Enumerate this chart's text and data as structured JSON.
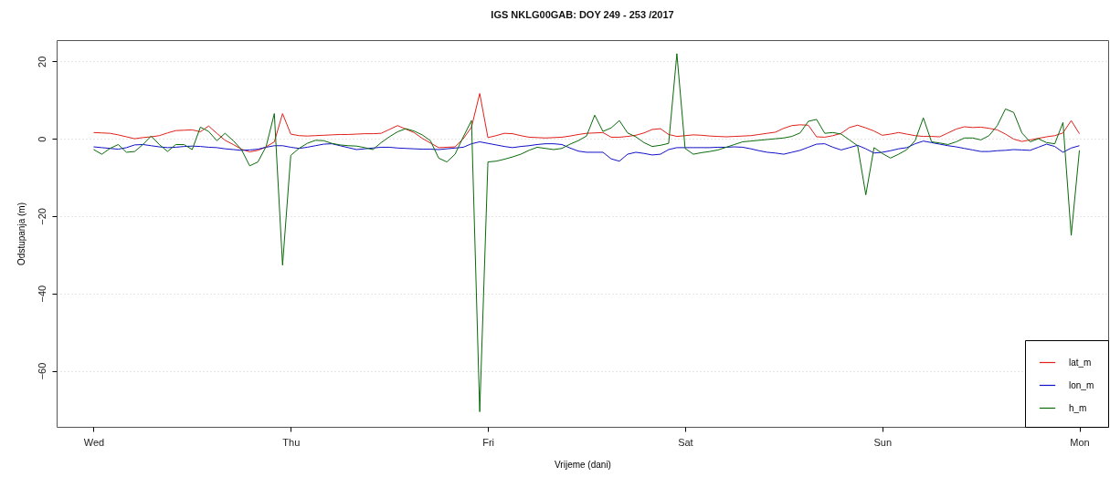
{
  "chart_data": {
    "type": "line",
    "title": "IGS NKLG00GAB: DOY 249 - 253 /2017",
    "xlabel": "Vrijeme (dani)",
    "ylabel": "Odstupanja (m)",
    "categories": [
      null,
      null,
      null,
      null,
      "Wed",
      null,
      null,
      null,
      null,
      null,
      null,
      null,
      null,
      null,
      null,
      null,
      null,
      null,
      null,
      null,
      null,
      null,
      null,
      null,
      null,
      null,
      null,
      null,
      "Thu",
      null,
      null,
      null,
      null,
      null,
      null,
      null,
      null,
      null,
      null,
      null,
      null,
      null,
      null,
      null,
      null,
      null,
      null,
      null,
      null,
      null,
      null,
      null,
      "Fri",
      null,
      null,
      null,
      null,
      null,
      null,
      null,
      null,
      null,
      null,
      null,
      null,
      null,
      null,
      null,
      null,
      null,
      null,
      null,
      null,
      null,
      null,
      null,
      "Sat",
      null,
      null,
      null,
      null,
      null,
      null,
      null,
      null,
      null,
      null,
      null,
      null,
      null,
      null,
      null,
      null,
      null,
      null,
      null,
      null,
      null,
      null,
      null,
      "Sun",
      null,
      null,
      null,
      null,
      null,
      null,
      null,
      null,
      null,
      null,
      null,
      null,
      null,
      null,
      null,
      null,
      null,
      null,
      null,
      null,
      null,
      null,
      null,
      "Mon",
      null,
      null,
      null
    ],
    "ylim": [
      -74.5,
      25.5
    ],
    "yticks": [
      -60,
      -40,
      -20,
      0,
      20
    ],
    "grid": "y",
    "legend": "bottom right",
    "series": [
      {
        "name": "lat_m",
        "color": "#e0201b",
        "values": [
          null,
          null,
          null,
          null,
          1.6,
          1.5,
          1.4,
          1,
          0.5,
          0,
          0.3,
          0.5,
          0.8,
          1.5,
          2.1,
          2.2,
          2.3,
          1.8,
          3.3,
          1.4,
          -0.4,
          -1.5,
          -2.7,
          -3.4,
          -3,
          -2.1,
          -0.8,
          6.5,
          1.2,
          0.8,
          0.7,
          0.8,
          0.9,
          1,
          1.1,
          1.1,
          1.2,
          1.3,
          1.3,
          1.4,
          2.4,
          3.4,
          2.5,
          1.6,
          0.1,
          -1.1,
          -2.3,
          -2.2,
          -2.1,
          0,
          3,
          11.7,
          0.3,
          0.8,
          1.4,
          1.3,
          0.8,
          0.4,
          0.3,
          0.2,
          0.3,
          0.4,
          0.7,
          1.1,
          1.4,
          1.5,
          1.6,
          0.4,
          0.4,
          0.6,
          0.9,
          1.5,
          2.4,
          2.6,
          1.1,
          0.6,
          0.8,
          1,
          0.9,
          0.7,
          0.6,
          0.5,
          0.6,
          0.7,
          0.8,
          1.1,
          1.4,
          1.7,
          2.7,
          3.4,
          3.6,
          3.5,
          0.5,
          0.4,
          0.8,
          1.4,
          2.9,
          3.5,
          2.8,
          2,
          0.9,
          1.2,
          1.6,
          1.2,
          0.8,
          0.6,
          0.6,
          0.5,
          1.5,
          2.5,
          3.1,
          2.9,
          3,
          2.7,
          2.3,
          1.2,
          -0.1,
          -0.7,
          -0.3,
          0.1,
          0.5,
          0.8,
          1.5,
          4.7,
          1.3,
          null,
          null,
          null
        ]
      },
      {
        "name": "lon_m",
        "color": "#1010c8",
        "values": [
          null,
          null,
          null,
          null,
          -2.1,
          -2.3,
          -2.5,
          -2.7,
          -2.3,
          -1.6,
          -1.5,
          -1.8,
          -2.1,
          -2.3,
          -2.2,
          -2,
          -1.9,
          -2,
          -2.2,
          -2.3,
          -2.6,
          -2.8,
          -3,
          -2.9,
          -2.7,
          -2.2,
          -1.8,
          -1.8,
          -2.2,
          -2.5,
          -2.2,
          -1.8,
          -1.4,
          -1.3,
          -1.8,
          -2.3,
          -2.8,
          -2.6,
          -2.4,
          -2.2,
          -2.2,
          -2.4,
          -2.5,
          -2.6,
          -2.7,
          -2.7,
          -2.8,
          -2.6,
          -2.4,
          -2.2,
          -1.3,
          -0.8,
          -1.2,
          -1.6,
          -2,
          -2.3,
          -2,
          -1.8,
          -1.5,
          -1.3,
          -1.3,
          -1.5,
          -2.4,
          -3.2,
          -3.5,
          -3.5,
          -3.5,
          -5.2,
          -5.8,
          -4,
          -3.5,
          -3.8,
          -4.2,
          -4,
          -2.8,
          -2.3,
          -2.3,
          -2.3,
          -2.3,
          -2.3,
          -2.2,
          -2.2,
          -2.1,
          -2.2,
          -2.6,
          -3.1,
          -3.5,
          -3.7,
          -4,
          -3.5,
          -3,
          -2.2,
          -1.4,
          -1.3,
          -2.2,
          -2.9,
          -2.3,
          -1.7,
          -2.6,
          -3.7,
          -3.5,
          -3.1,
          -2.6,
          -2.3,
          -1.3,
          -0.6,
          -1,
          -1.4,
          -1.8,
          -2.1,
          -2.5,
          -2.9,
          -3.3,
          -3.3,
          -3.1,
          -3,
          -2.8,
          -2.9,
          -3,
          -2.2,
          -1.4,
          -2,
          -3.5,
          -2.4,
          -1.8,
          null,
          null,
          null
        ]
      },
      {
        "name": "h_m",
        "color": "#0a6a0a",
        "values": [
          null,
          null,
          null,
          null,
          -2.8,
          -4,
          -2.5,
          -1.5,
          -3.5,
          -3.3,
          -1.5,
          0.7,
          -1.5,
          -3.3,
          -1.5,
          -1.5,
          -2.8,
          3,
          1.9,
          -0.5,
          1.4,
          -0.5,
          -2.8,
          -7,
          -6,
          -2,
          6.5,
          -32.7,
          -4.3,
          -2.5,
          -1.2,
          -0.4,
          -0.5,
          -1.2,
          -1.6,
          -1.8,
          -1.9,
          -2.3,
          -2.8,
          -1,
          0.5,
          1.8,
          2.6,
          2,
          1,
          -0.5,
          -5,
          -6,
          -4,
          0.5,
          4.7,
          -70.6,
          -6,
          -5.8,
          -5.3,
          -4.7,
          -4,
          -3,
          -2.2,
          -2.5,
          -2.8,
          -2.5,
          -1.4,
          -0.5,
          0.7,
          6.1,
          1.9,
          2.8,
          4.7,
          1.5,
          0.5,
          -1,
          -2,
          -1.7,
          -1.2,
          22,
          -2.5,
          -4,
          -3.6,
          -3.3,
          -2.9,
          -2.2,
          -1.5,
          -0.8,
          -0.6,
          -0.4,
          -0.2,
          0,
          0.2,
          0.6,
          1.5,
          4.5,
          5,
          1.4,
          1.6,
          1.2,
          -0.3,
          -1.8,
          -14.5,
          -2.3,
          -3.8,
          -5,
          -4,
          -2.8,
          -0.5,
          5.4,
          -0.8,
          -1.1,
          -1.5,
          -0.8,
          0.2,
          0.2,
          -0.3,
          0.8,
          3.4,
          7.7,
          6.8,
          1.5,
          -0.8,
          0,
          -1,
          -1.3,
          4.2,
          -25,
          -3,
          null,
          null,
          null
        ]
      }
    ]
  }
}
